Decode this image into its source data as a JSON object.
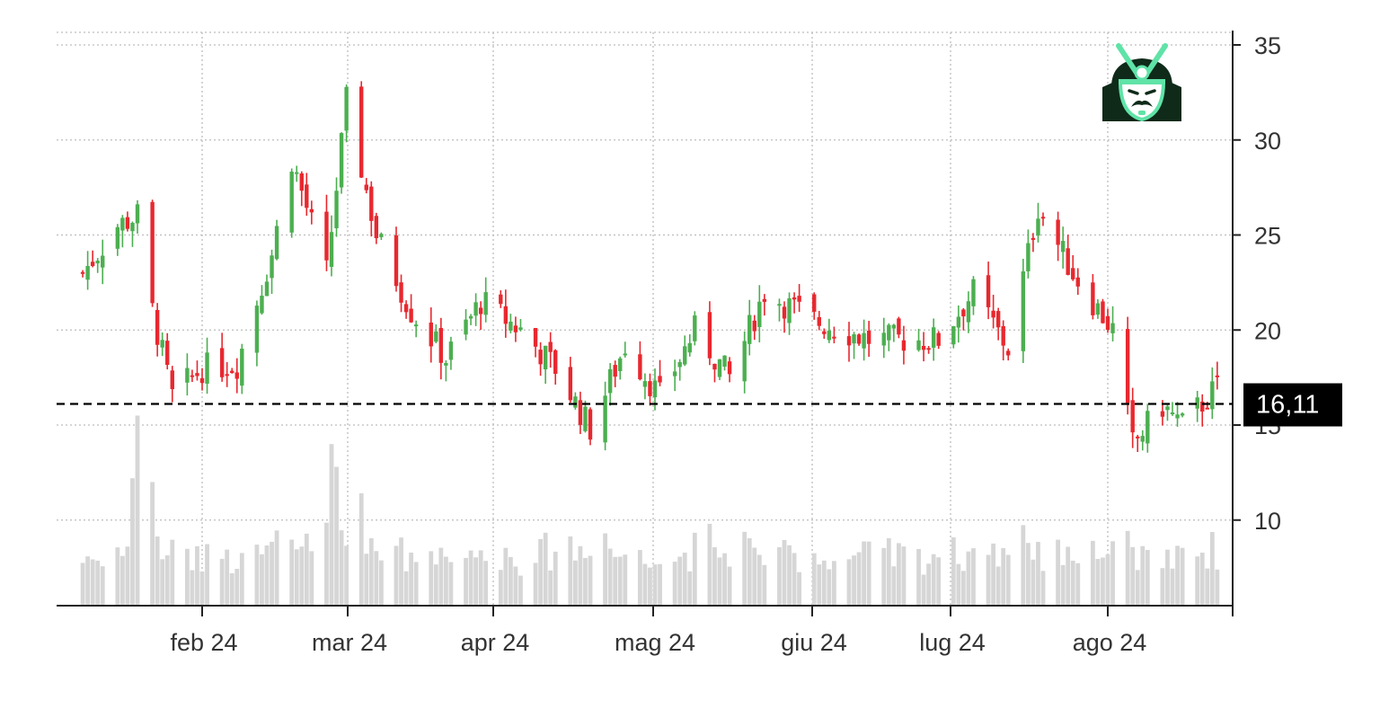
{
  "chart_data": {
    "type": "candlestick",
    "title": "",
    "xlabel": "",
    "ylabel": "",
    "ylim": [
      5,
      36
    ],
    "grid": true,
    "legend": null,
    "x_tick_labels": [
      "feb 24",
      "mar 24",
      "apr 24",
      "mag 24",
      "giu 24",
      "lug 24",
      "ago 24"
    ],
    "y_tick_labels": [
      "10",
      "15",
      "20",
      "25",
      "30",
      "35"
    ],
    "y_ticks": [
      10,
      15,
      20,
      25,
      30,
      35
    ],
    "last_price": 16.11,
    "last_price_label": "16,11",
    "colors": {
      "up": "#4caf50",
      "down": "#e8282f",
      "volume": "#d6d6d6",
      "grid": "#bdbdbd",
      "axis": "#222222",
      "price_line": "#000000",
      "price_label_bg": "#000000",
      "price_label_text": "#ffffff",
      "logo_green": "#5fe3a7",
      "logo_dark": "#0f2a19"
    },
    "approx_close_path": [
      {
        "date": "2024-01-08",
        "close": 23.0
      },
      {
        "date": "2024-01-15",
        "close": 25.5
      },
      {
        "date": "2024-01-19",
        "close": 26.0
      },
      {
        "date": "2024-01-22",
        "close": 21.0
      },
      {
        "date": "2024-01-26",
        "close": 16.5
      },
      {
        "date": "2024-02-01",
        "close": 18.0
      },
      {
        "date": "2024-02-08",
        "close": 18.2
      },
      {
        "date": "2024-02-15",
        "close": 24.0
      },
      {
        "date": "2024-02-19",
        "close": 29.0
      },
      {
        "date": "2024-02-26",
        "close": 23.0
      },
      {
        "date": "2024-03-01",
        "close": 32.0
      },
      {
        "date": "2024-03-07",
        "close": 25.0
      },
      {
        "date": "2024-03-14",
        "close": 21.0
      },
      {
        "date": "2024-03-21",
        "close": 18.5
      },
      {
        "date": "2024-03-28",
        "close": 21.5
      },
      {
        "date": "2024-04-05",
        "close": 20.0
      },
      {
        "date": "2024-04-12",
        "close": 18.0
      },
      {
        "date": "2024-04-19",
        "close": 14.8
      },
      {
        "date": "2024-04-26",
        "close": 19.2
      },
      {
        "date": "2024-05-03",
        "close": 16.5
      },
      {
        "date": "2024-05-10",
        "close": 20.0
      },
      {
        "date": "2024-05-17",
        "close": 17.5
      },
      {
        "date": "2024-05-24",
        "close": 22.0
      },
      {
        "date": "2024-06-03",
        "close": 20.5
      },
      {
        "date": "2024-06-14",
        "close": 19.5
      },
      {
        "date": "2024-06-28",
        "close": 19.5
      },
      {
        "date": "2024-07-05",
        "close": 22.0
      },
      {
        "date": "2024-07-12",
        "close": 19.0
      },
      {
        "date": "2024-07-18",
        "close": 26.5
      },
      {
        "date": "2024-07-25",
        "close": 23.0
      },
      {
        "date": "2024-08-02",
        "close": 20.0
      },
      {
        "date": "2024-08-06",
        "close": 14.0
      },
      {
        "date": "2024-08-12",
        "close": 16.0
      },
      {
        "date": "2024-08-16",
        "close": 15.0
      },
      {
        "date": "2024-08-23",
        "close": 17.0
      },
      {
        "date": "2024-08-28",
        "close": 18.5
      }
    ],
    "volume_note": "Grey volume bars overlaid at bottom, scaled to price axis range ~5-15 (peaks ~15.5 mid-Jan and ~14 late Feb)"
  },
  "logo": {
    "name": "samurai-helmet-logo"
  }
}
